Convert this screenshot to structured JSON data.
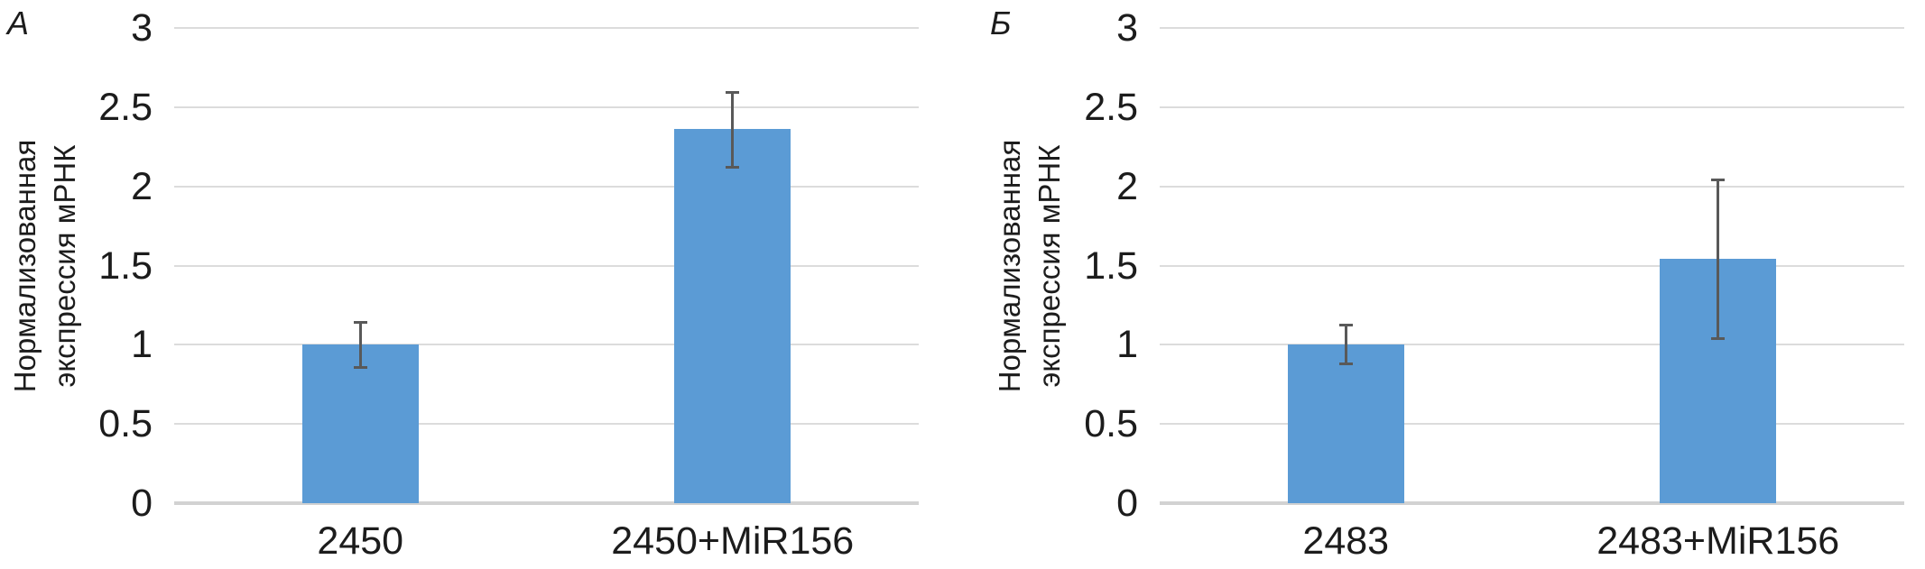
{
  "figure": {
    "background": "#ffffff",
    "description_visible_text_only": "Two-panel bar figure"
  },
  "chart_data": [
    {
      "type": "bar",
      "panel_label": "А",
      "ylabel": "Нормализованная экспрессия мРНК",
      "ylabel_lines": [
        "Нормализованная",
        "экспрессия мРНК"
      ],
      "categories": [
        "2450",
        "2450+MiR156"
      ],
      "values": [
        1.0,
        2.36
      ],
      "errors": [
        {
          "low": 0.85,
          "high": 1.15
        },
        {
          "low": 2.11,
          "high": 2.6
        }
      ],
      "ylim": [
        0,
        3
      ],
      "ytick_step": 0.5,
      "ytick_labels_top_to_bottom": [
        "3",
        "2.5",
        "2",
        "1.5",
        "1",
        "0.5",
        "0"
      ],
      "grid": true,
      "legend": "none",
      "bar_color": "#5B9BD5",
      "error_color": "#595959",
      "gridline_color": "#DCDCDC",
      "axis_line_color": "#D2D2D2",
      "text_color": "#1C1C1C"
    },
    {
      "type": "bar",
      "panel_label": "Б",
      "ylabel": "Нормализованная экспрессия мРНК",
      "ylabel_lines": [
        "Нормализованная",
        "экспрессия мРНК"
      ],
      "categories": [
        "2483",
        "2483+MiR156"
      ],
      "values": [
        1.0,
        1.54
      ],
      "errors": [
        {
          "low": 0.87,
          "high": 1.13
        },
        {
          "low": 1.03,
          "high": 2.05
        }
      ],
      "ylim": [
        0,
        3
      ],
      "ytick_step": 0.5,
      "ytick_labels_top_to_bottom": [
        "3",
        "2.5",
        "2",
        "1.5",
        "1",
        "0.5",
        "0"
      ],
      "grid": true,
      "legend": "none",
      "bar_color": "#5B9BD5",
      "error_color": "#595959",
      "gridline_color": "#DCDCDC",
      "axis_line_color": "#D2D2D2",
      "text_color": "#1C1C1C"
    }
  ]
}
